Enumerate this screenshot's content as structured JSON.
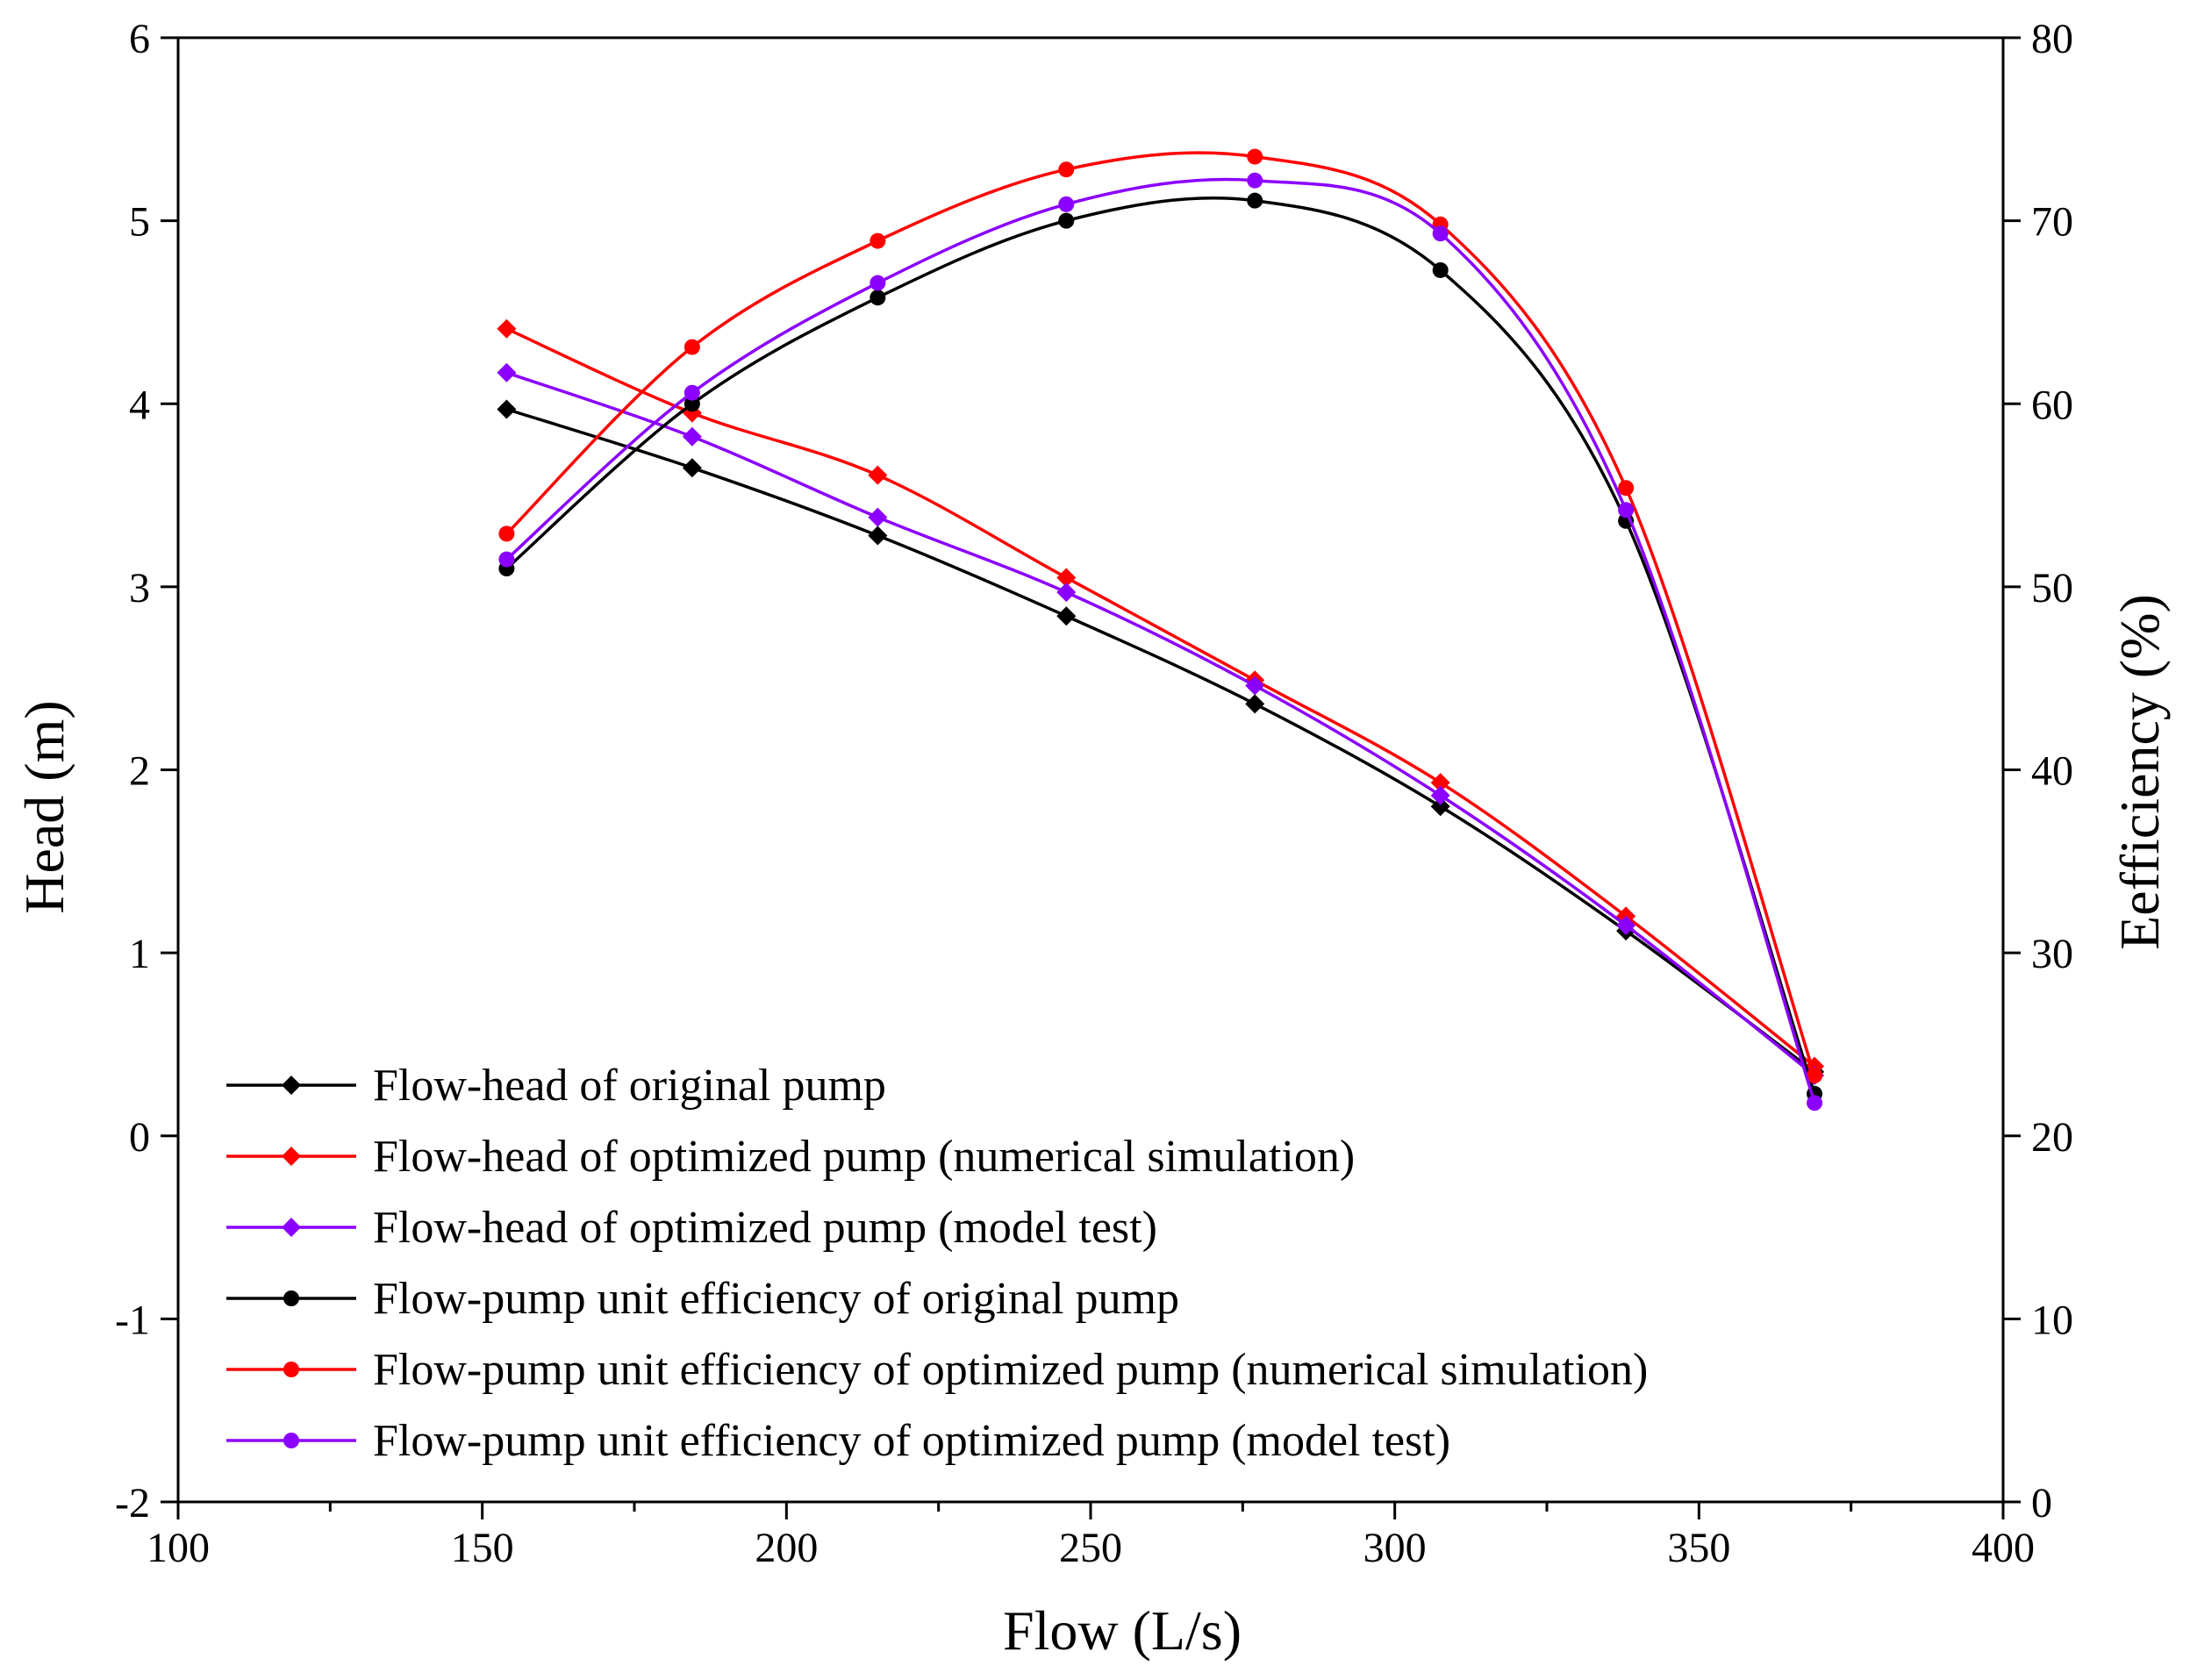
{
  "chart_data": {
    "type": "line",
    "title": "",
    "xlabel": "Flow (L/s)",
    "ylabel_left": "Head (m)",
    "ylabel_right": "Eefficiency (%)",
    "xlim": [
      100,
      400
    ],
    "ylim_left": [
      -2,
      6
    ],
    "ylim_right": [
      0,
      80
    ],
    "x_ticks": [
      100,
      150,
      200,
      250,
      300,
      350,
      400
    ],
    "x_tick_labels": [
      "100",
      "150",
      "200",
      "250",
      "300",
      "350",
      "400"
    ],
    "y_left_ticks": [
      -2,
      -1,
      0,
      1,
      2,
      3,
      4,
      5,
      6
    ],
    "y_left_tick_labels": [
      "-2",
      "-1",
      "0",
      "1",
      "2",
      "3",
      "4",
      "5",
      "6"
    ],
    "y_right_ticks": [
      0,
      10,
      20,
      30,
      40,
      50,
      60,
      70,
      80
    ],
    "y_right_tick_labels": [
      "0",
      "10",
      "20",
      "30",
      "40",
      "50",
      "60",
      "70",
      "80"
    ],
    "grid": false,
    "legend_position": "bottom-left",
    "x": [
      154,
      184.5,
      215,
      246,
      277,
      307.5,
      338,
      369
    ],
    "series": [
      {
        "name": "Flow-head of original pump",
        "axis": "left",
        "marker": "diamond",
        "color": "#000000",
        "values": [
          3.97,
          3.65,
          3.28,
          2.84,
          2.36,
          1.8,
          1.12,
          0.35
        ]
      },
      {
        "name": "Flow-head of optimized pump (numerical simulation)",
        "axis": "left",
        "marker": "diamond",
        "color": "#ff0000",
        "values": [
          4.41,
          3.95,
          3.61,
          3.05,
          2.49,
          1.93,
          1.2,
          0.38
        ]
      },
      {
        "name": "Flow-head of optimized pump (model test)",
        "axis": "left",
        "marker": "diamond",
        "color": "#8b00ff",
        "values": [
          4.17,
          3.82,
          3.38,
          2.97,
          2.46,
          1.86,
          1.15,
          0.33
        ]
      },
      {
        "name": "Flow-pump unit efficiency of original pump",
        "axis": "right",
        "marker": "circle",
        "color": "#000000",
        "values": [
          51.0,
          60.0,
          65.8,
          70.0,
          71.1,
          67.3,
          53.6,
          22.3
        ]
      },
      {
        "name": "Flow-pump unit efficiency of optimized pump (numerical simulation)",
        "axis": "right",
        "marker": "circle",
        "color": "#ff0000",
        "values": [
          52.9,
          63.1,
          68.9,
          72.8,
          73.5,
          69.8,
          55.4,
          23.3
        ]
      },
      {
        "name": "Flow-pump unit efficiency of optimized pump (model test)",
        "axis": "right",
        "marker": "circle",
        "color": "#8b00ff",
        "values": [
          51.5,
          60.6,
          66.6,
          70.9,
          72.2,
          69.3,
          54.2,
          21.8
        ]
      }
    ]
  }
}
